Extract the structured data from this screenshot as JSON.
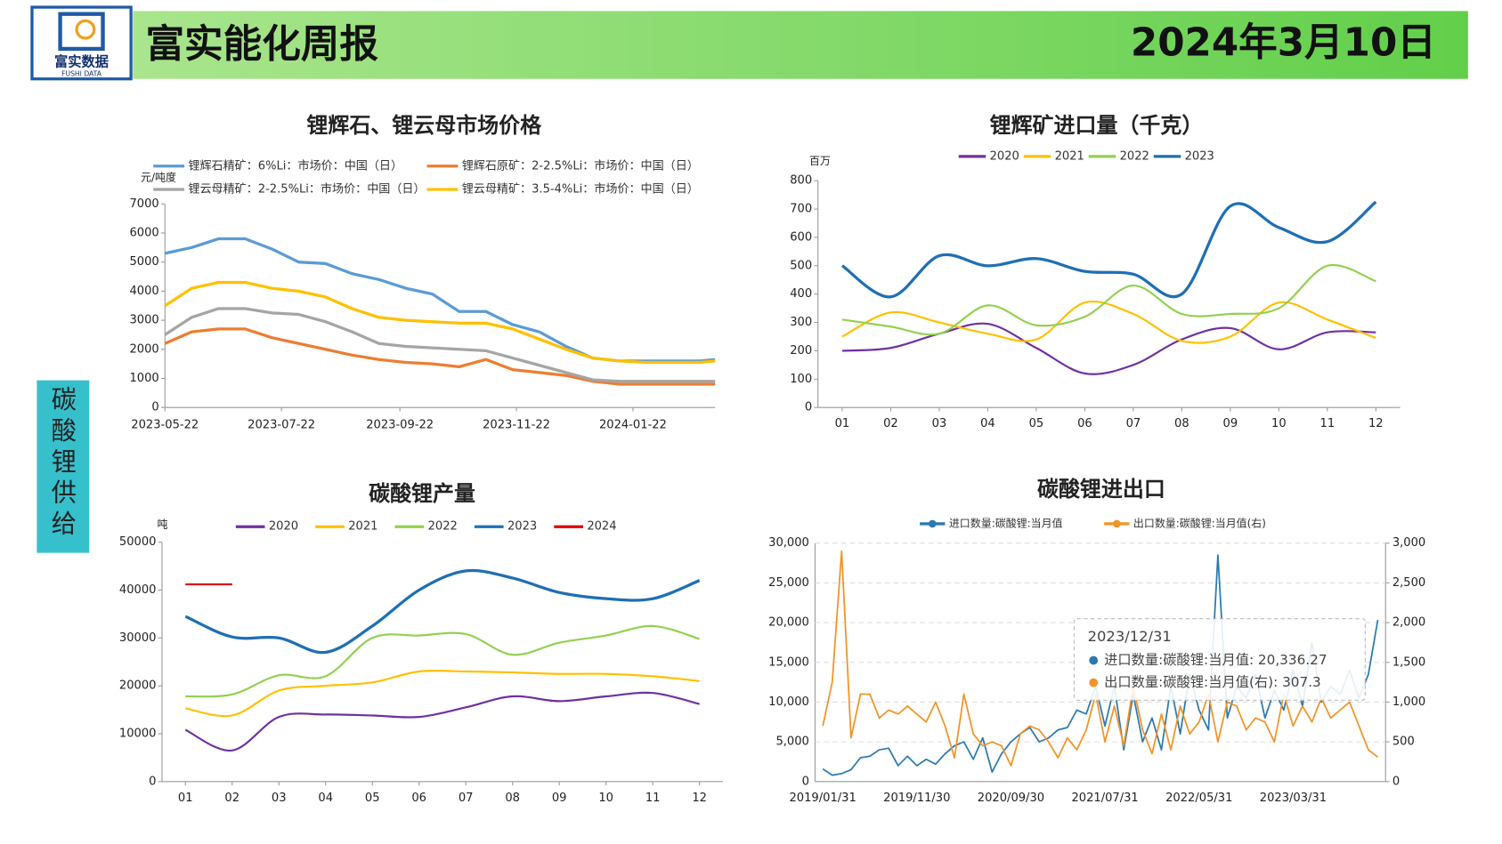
{
  "header": {
    "logo_text": "富实数据",
    "logo_subtext": "FUSHI DATA",
    "title": "富实能化周报",
    "date": "2024年3月10日"
  },
  "side_label": "碳酸锂供给",
  "chart_data": [
    {
      "type": "line",
      "title": "锂辉石、锂云母市场价格",
      "y_label": "元/吨度",
      "x": [
        "2023-05-22",
        "2023-06-05",
        "2023-06-19",
        "2023-07-03",
        "2023-07-17",
        "2023-07-31",
        "2023-08-14",
        "2023-08-28",
        "2023-09-11",
        "2023-09-25",
        "2023-10-09",
        "2023-10-23",
        "2023-11-06",
        "2023-11-20",
        "2023-12-04",
        "2023-12-18",
        "2024-01-01",
        "2024-01-15",
        "2024-01-29",
        "2024-02-12",
        "2024-02-26",
        "2024-03-05"
      ],
      "xlim": [
        "2023-05-22",
        "2024-03-05"
      ],
      "xticks": [
        "2023-05-22",
        "2023-07-22",
        "2023-09-22",
        "2023-11-22",
        "2024-01-22"
      ],
      "ylim": [
        0,
        7000
      ],
      "yticks": [
        0,
        1000,
        2000,
        3000,
        4000,
        5000,
        6000,
        7000
      ],
      "grid": false,
      "series": [
        {
          "name": "锂辉石精矿：6%Li：市场价：中国（日）",
          "color": "#5b9bd5",
          "values": [
            5300,
            5500,
            5800,
            5800,
            5450,
            5000,
            4950,
            4600,
            4400,
            4100,
            3900,
            3300,
            3300,
            2850,
            2600,
            2100,
            1700,
            1600,
            1600,
            1600,
            1600,
            1650
          ]
        },
        {
          "name": "锂辉石原矿：2-2.5%Li：市场价：中国（日）",
          "color": "#ed7d31",
          "values": [
            2200,
            2600,
            2700,
            2700,
            2400,
            2200,
            2000,
            1800,
            1650,
            1550,
            1500,
            1400,
            1650,
            1300,
            1200,
            1100,
            900,
            800,
            800,
            800,
            800,
            800
          ]
        },
        {
          "name": "锂云母精矿：2-2.5%Li：市场价：中国（日）",
          "color": "#a5a5a5",
          "values": [
            2500,
            3100,
            3400,
            3400,
            3250,
            3200,
            2950,
            2600,
            2200,
            2100,
            2050,
            2000,
            1950,
            1700,
            1450,
            1200,
            950,
            900,
            900,
            900,
            900,
            900
          ]
        },
        {
          "name": "锂云母精矿：3.5-4%Li：市场价：中国（日）",
          "color": "#ffc000",
          "values": [
            3500,
            4100,
            4300,
            4300,
            4100,
            4000,
            3800,
            3400,
            3100,
            3000,
            2950,
            2900,
            2900,
            2700,
            2350,
            2000,
            1700,
            1600,
            1550,
            1550,
            1550,
            1600
          ]
        }
      ]
    },
    {
      "type": "line",
      "title": "锂辉矿进口量（千克）",
      "y_label": "百万",
      "categories": [
        "01",
        "02",
        "03",
        "04",
        "05",
        "06",
        "07",
        "08",
        "09",
        "10",
        "11",
        "12"
      ],
      "ylim": [
        0,
        800
      ],
      "yticks": [
        0,
        100,
        200,
        300,
        400,
        500,
        600,
        700,
        800
      ],
      "grid": false,
      "series": [
        {
          "name": "2020",
          "color": "#7030a0",
          "values": [
            200,
            210,
            260,
            295,
            210,
            120,
            150,
            240,
            280,
            205,
            265,
            265
          ]
        },
        {
          "name": "2021",
          "color": "#ffc000",
          "values": [
            250,
            335,
            300,
            260,
            240,
            370,
            330,
            235,
            250,
            370,
            310,
            245
          ]
        },
        {
          "name": "2022",
          "color": "#92d050",
          "values": [
            310,
            285,
            260,
            360,
            290,
            320,
            430,
            330,
            330,
            350,
            500,
            445
          ]
        },
        {
          "name": "2023",
          "color": "#1f6fb4",
          "values": [
            500,
            390,
            535,
            500,
            525,
            480,
            470,
            400,
            710,
            635,
            585,
            725
          ]
        }
      ]
    },
    {
      "type": "line",
      "title": "碳酸锂产量",
      "y_label": "吨",
      "categories": [
        "01",
        "02",
        "03",
        "04",
        "05",
        "06",
        "07",
        "08",
        "09",
        "10",
        "11",
        "12"
      ],
      "ylim": [
        0,
        50000
      ],
      "yticks": [
        0,
        10000,
        20000,
        30000,
        40000,
        50000
      ],
      "grid": false,
      "series": [
        {
          "name": "2020",
          "color": "#7030a0",
          "values": [
            10800,
            6500,
            13500,
            14000,
            13800,
            13500,
            15500,
            17800,
            16800,
            17800,
            18500,
            16200
          ]
        },
        {
          "name": "2021",
          "color": "#ffc000",
          "values": [
            15300,
            13800,
            19000,
            20000,
            20700,
            23000,
            23000,
            22800,
            22500,
            22500,
            22000,
            21000
          ]
        },
        {
          "name": "2022",
          "color": "#92d050",
          "values": [
            17800,
            18200,
            22200,
            22000,
            30000,
            30500,
            30800,
            26500,
            29000,
            30500,
            32500,
            29800
          ]
        },
        {
          "name": "2023",
          "color": "#1f6fb4",
          "values": [
            34500,
            30200,
            30000,
            27000,
            32500,
            40000,
            44000,
            42500,
            39500,
            38200,
            38200,
            42000
          ]
        },
        {
          "name": "2024",
          "color": "#e00000",
          "values": [
            41200,
            41200,
            null,
            null,
            null,
            null,
            null,
            null,
            null,
            null,
            null,
            null
          ]
        }
      ]
    },
    {
      "type": "line",
      "title": "碳酸锂进出口",
      "categories": [
        "2019/01/31",
        null,
        null,
        null,
        null,
        null,
        null,
        null,
        null,
        null,
        "2019/11/30",
        null,
        null,
        null,
        null,
        null,
        null,
        null,
        null,
        null,
        "2020/09/30",
        null,
        null,
        null,
        null,
        null,
        null,
        null,
        null,
        null,
        "2021/07/31",
        null,
        null,
        null,
        null,
        null,
        null,
        null,
        null,
        null,
        "2022/05/31",
        null,
        null,
        null,
        null,
        null,
        null,
        null,
        null,
        null,
        "2023/03/31",
        null,
        null,
        null,
        null,
        null,
        null,
        null,
        null,
        null
      ],
      "ylim": [
        0,
        30000
      ],
      "yticks": [
        0,
        {
          "value": 5000,
          "label": "5,000"
        },
        {
          "value": 10000,
          "label": "10,000"
        },
        {
          "value": 15000,
          "label": "15,000"
        },
        {
          "value": 20000,
          "label": "20,000"
        },
        {
          "value": 25000,
          "label": "25,000"
        },
        {
          "value": 30000,
          "label": "30,000"
        }
      ],
      "y2lim": [
        0,
        3000
      ],
      "y2ticks": [
        0,
        500,
        {
          "value": 1000,
          "label": "1,000"
        },
        {
          "value": 1500,
          "label": "1,500"
        },
        {
          "value": 2000,
          "label": "2,000"
        },
        {
          "value": 2500,
          "label": "2,500"
        },
        {
          "value": 3000,
          "label": "3,000"
        }
      ],
      "grid": true,
      "series": [
        {
          "name": "进口数量:碳酸锂:当月值",
          "color": "#2a7ab0",
          "values": [
            1600,
            800,
            1000,
            1500,
            3000,
            3200,
            4000,
            4200,
            2000,
            3200,
            2000,
            2800,
            2200,
            3500,
            4500,
            5000,
            2800,
            5500,
            1200,
            3500,
            5000,
            6000,
            6800,
            5000,
            5500,
            6500,
            6800,
            9000,
            8500,
            12000,
            7000,
            12000,
            4000,
            11000,
            5000,
            8000,
            4000,
            12000,
            6000,
            13500,
            9000,
            6500,
            28500,
            8000,
            12000,
            10500,
            13500,
            8000,
            11500,
            9000,
            14000,
            9500,
            17500,
            10000,
            12000,
            11000,
            14000,
            10500,
            13500,
            20336.27
          ]
        },
        {
          "name": "出口数量:碳酸锂:当月值(右)",
          "color": "#f39325",
          "axis": "y2",
          "values": [
            700,
            1250,
            2900,
            550,
            1100,
            1100,
            800,
            900,
            850,
            950,
            850,
            750,
            1000,
            700,
            300,
            1100,
            600,
            450,
            500,
            450,
            200,
            600,
            700,
            650,
            500,
            300,
            550,
            400,
            650,
            1100,
            500,
            950,
            450,
            1200,
            650,
            350,
            850,
            400,
            950,
            600,
            750,
            1100,
            500,
            1000,
            950,
            650,
            800,
            750,
            500,
            1100,
            700,
            950,
            750,
            1050,
            800,
            900,
            1000,
            700,
            400,
            307.3
          ]
        }
      ],
      "tooltip": {
        "title": "2023/12/31",
        "rows": [
          "进口数量:碳酸锂:当月值: 20,336.27",
          "出口数量:碳酸锂:当月值(右): 307.3"
        ]
      }
    }
  ]
}
